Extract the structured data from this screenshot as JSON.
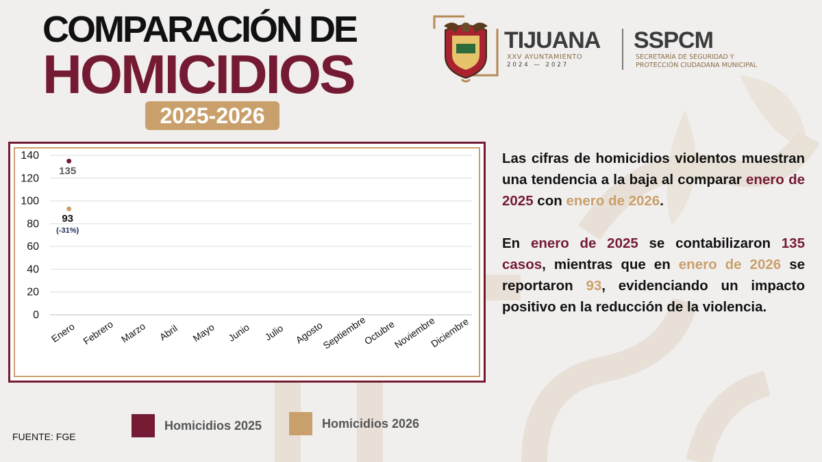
{
  "header": {
    "title_line1": "COMPARACIÓN DE",
    "title_line2": "HOMICIDIOS",
    "year_range": "2025-2026"
  },
  "logos": {
    "city_name": "TIJUANA",
    "city_sub": "XXV AYUNTAMIENTO",
    "city_years": "2024 — 2027",
    "agency_name": "SSPCM",
    "agency_sub_line1": "SECRETARÍA DE SEGURIDAD Y",
    "agency_sub_line2": "PROTECCIÓN CIUDADANA MUNICIPAL"
  },
  "chart_data": {
    "type": "scatter",
    "categories": [
      "Enero",
      "Febrero",
      "Marzo",
      "Abril",
      "Mayo",
      "Junio",
      "Julio",
      "Agosto",
      "Septiembre",
      "Octubre",
      "Noviembre",
      "Diciembre"
    ],
    "series": [
      {
        "name": "Homicidios 2025",
        "color": "#741b33",
        "values": [
          135,
          null,
          null,
          null,
          null,
          null,
          null,
          null,
          null,
          null,
          null,
          null
        ],
        "labels": [
          "135"
        ]
      },
      {
        "name": "Homicidios 2026",
        "color": "#c9a06b",
        "values": [
          93,
          null,
          null,
          null,
          null,
          null,
          null,
          null,
          null,
          null,
          null,
          null
        ],
        "labels": [
          "93"
        ]
      }
    ],
    "annotation": "(-31%)",
    "yticks": [
      0,
      20,
      40,
      60,
      80,
      100,
      120,
      140
    ],
    "ylim": [
      0,
      140
    ],
    "grid": true,
    "legend_placement": "bottom"
  },
  "description": {
    "p1_a": "Las cifras de homicidios violentos muestran una tendencia a la baja al comparar ",
    "p1_b": "enero de 2025",
    "p1_c": " con ",
    "p1_d": "enero de 2026",
    "p1_e": ".",
    "p2_a": "En ",
    "p2_b": "enero de 2025",
    "p2_c": " se contabilizaron ",
    "p2_d": "135 casos",
    "p2_e": ", mientras que en ",
    "p2_f": "enero de 2026",
    "p2_g": " se reportaron ",
    "p2_h": "93",
    "p2_i": ", evidenciando un impacto positivo en la reducción de la violencia."
  },
  "legend": {
    "item1": "Homicidios 2025",
    "item2": "Homicidios 2026"
  },
  "source": "FUENTE: FGE",
  "colors": {
    "maroon": "#741b33",
    "gold": "#c9a06b",
    "background": "#f1efee"
  }
}
